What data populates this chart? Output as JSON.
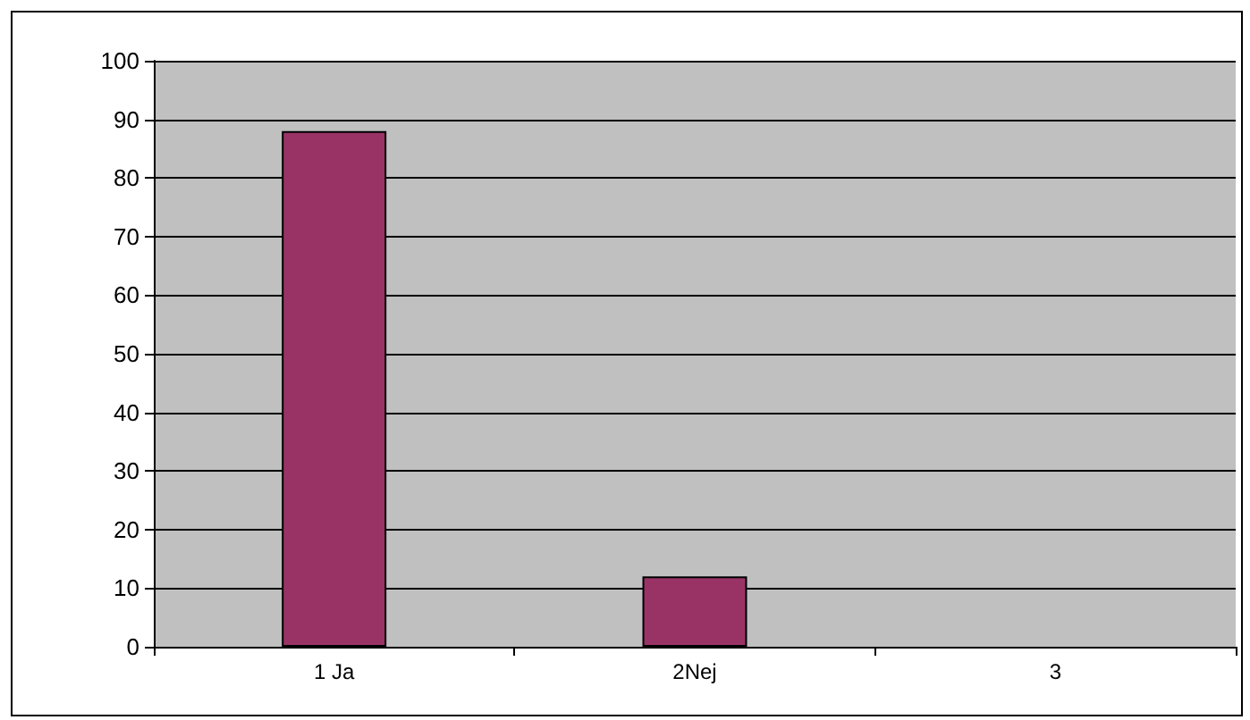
{
  "chart_data": {
    "type": "bar",
    "categories": [
      "1 Ja",
      "2Nej",
      "3"
    ],
    "series": [
      {
        "color": "#993366",
        "values": [
          88,
          12,
          null
        ]
      }
    ],
    "ylim": [
      0,
      100
    ],
    "yticks": [
      0,
      10,
      20,
      30,
      40,
      50,
      60,
      70,
      80,
      90,
      100
    ],
    "grid": "y"
  }
}
